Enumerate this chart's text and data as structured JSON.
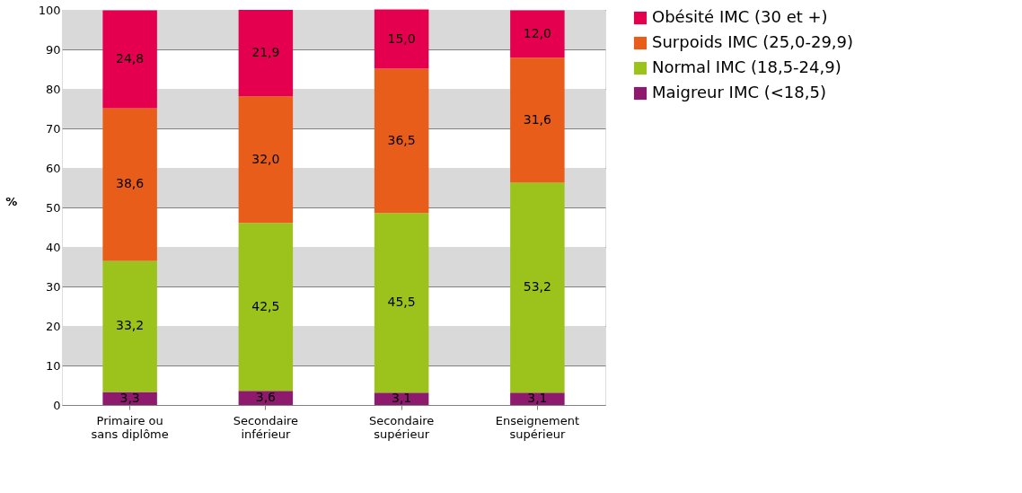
{
  "chart_data": {
    "type": "bar",
    "stacked": true,
    "ylabel": "%",
    "categories": [
      "Primaire ou sans diplôme",
      "Secondaire inférieur",
      "Secondaire supérieur",
      "Enseignement supérieur"
    ],
    "series": [
      {
        "name": "Maigreur IMC (<18,5)",
        "color": "#8e1a6e",
        "values": [
          3.3,
          3.6,
          3.1,
          3.1
        ],
        "value_labels": [
          "3,3",
          "3,6",
          "3,1",
          "3,1"
        ]
      },
      {
        "name": "Normal IMC (18,5-24,9)",
        "color": "#9bc31c",
        "values": [
          33.2,
          42.5,
          45.5,
          53.2
        ],
        "value_labels": [
          "33,2",
          "42,5",
          "45,5",
          "53,2"
        ]
      },
      {
        "name": "Surpoids IMC (25,0-29,9)",
        "color": "#e85d1a",
        "values": [
          38.6,
          32.0,
          36.5,
          31.6
        ],
        "value_labels": [
          "38,6",
          "32,0",
          "36,5",
          "31,6"
        ]
      },
      {
        "name": "Obésité IMC (30 et +)",
        "color": "#e5004f",
        "values": [
          24.8,
          21.9,
          15.0,
          12.0
        ],
        "value_labels": [
          "24,8",
          "21,9",
          "15,0",
          "12,0"
        ]
      }
    ],
    "ylim": [
      0,
      100
    ],
    "yticks": [
      0,
      10,
      20,
      30,
      40,
      50,
      60,
      70,
      80,
      90,
      100
    ],
    "bands": [
      {
        "axis": "y",
        "from": 10,
        "to": 20,
        "color": "#d9d9d9"
      },
      {
        "axis": "y",
        "from": 30,
        "to": 40,
        "color": "#d9d9d9"
      },
      {
        "axis": "y",
        "from": 50,
        "to": 60,
        "color": "#d9d9d9"
      },
      {
        "axis": "y",
        "from": 70,
        "to": 80,
        "color": "#d9d9d9"
      },
      {
        "axis": "y",
        "from": 90,
        "to": 100,
        "color": "#d9d9d9"
      }
    ],
    "grid": "y",
    "legend": "right"
  }
}
